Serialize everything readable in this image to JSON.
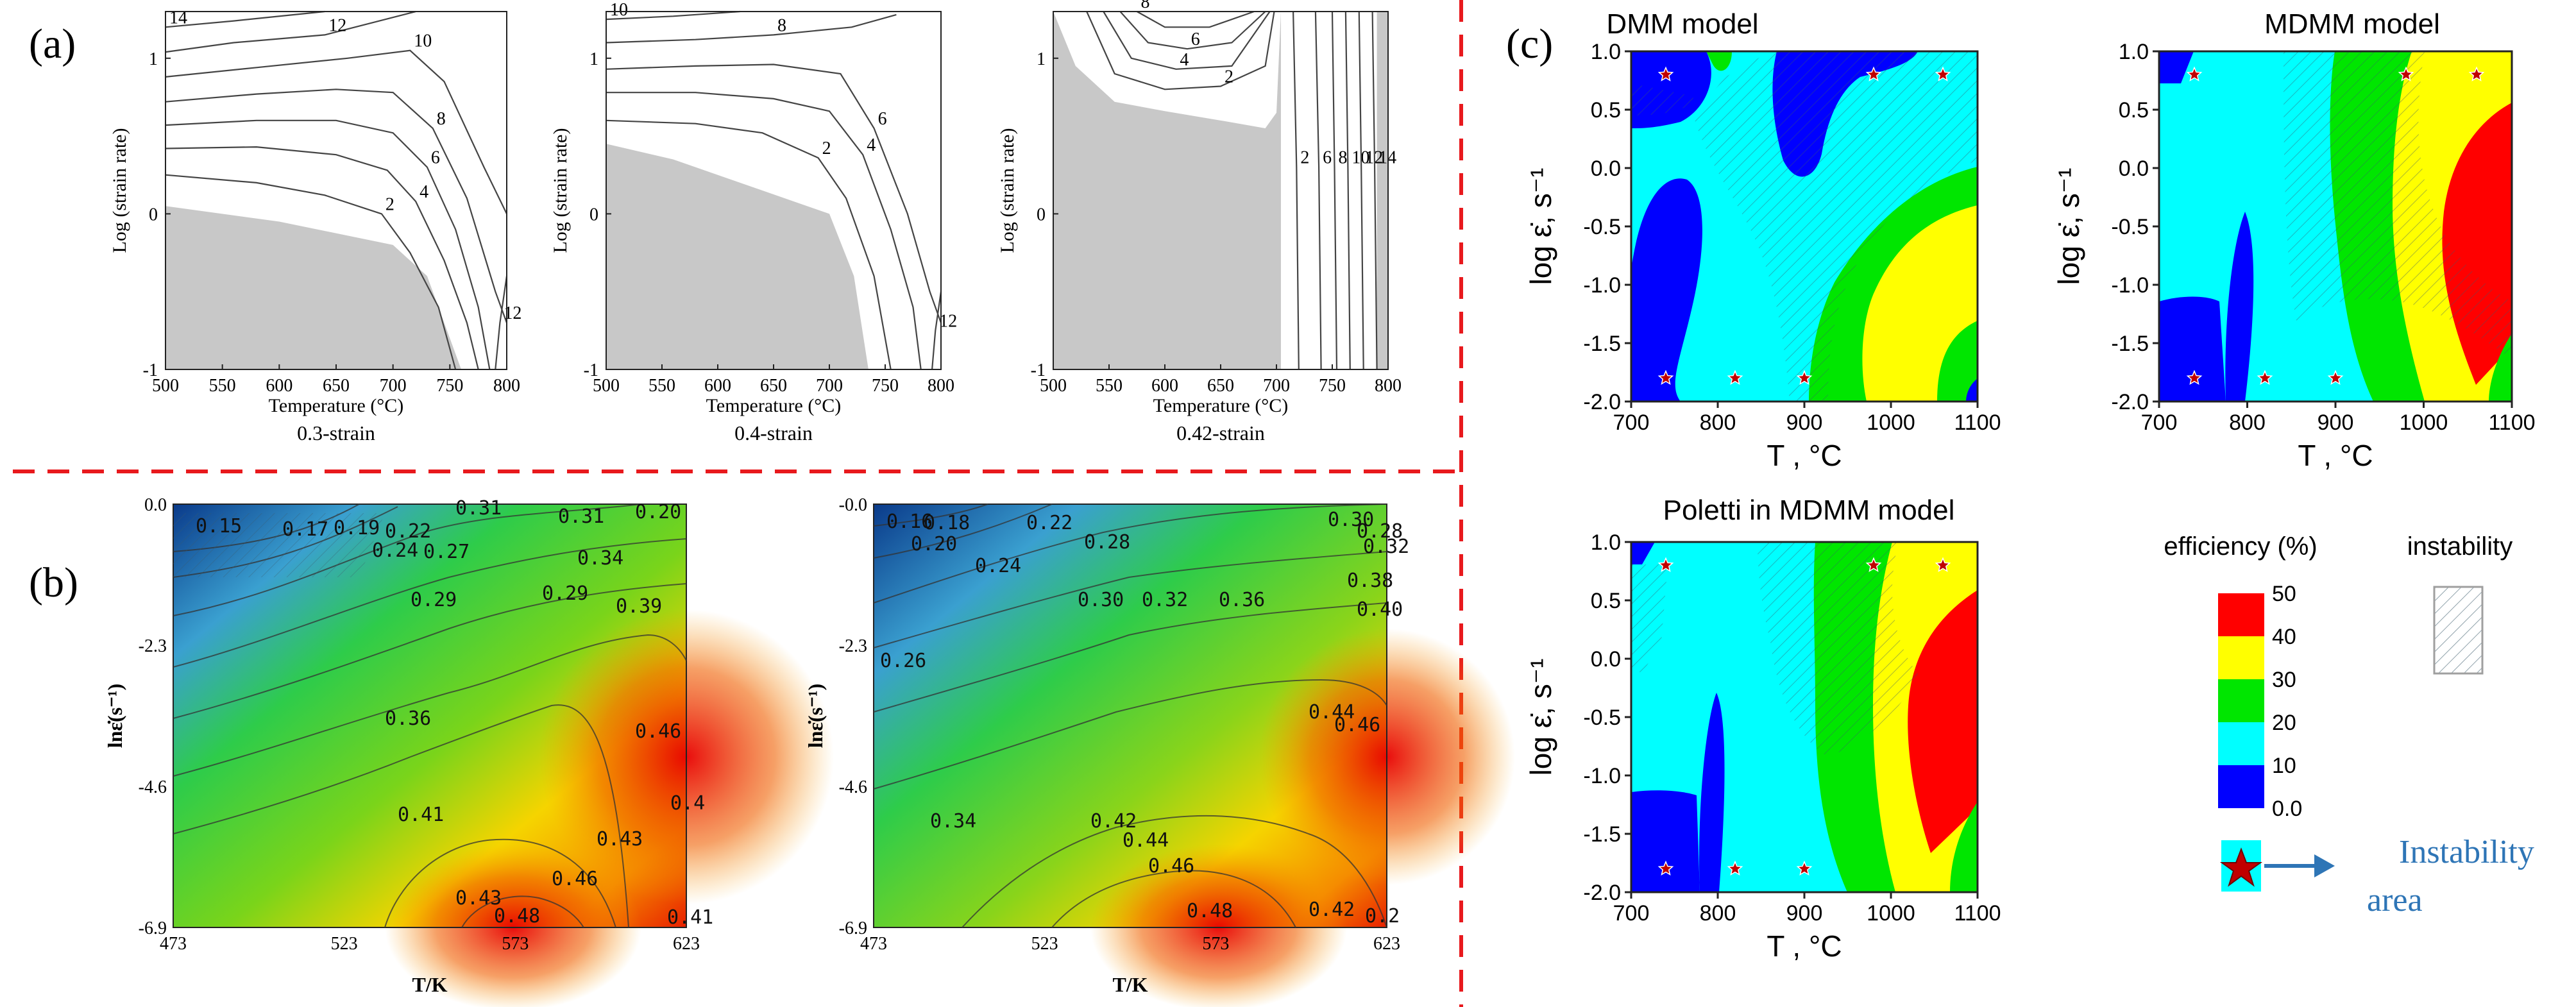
{
  "figure": {
    "panel_labels": [
      "(a)",
      "(b)",
      "(c)"
    ],
    "divider_color": "#e8191d"
  },
  "chart_data": [
    {
      "id": "a1",
      "type": "contour",
      "panel": "(a)",
      "title": "0.3-strain",
      "xlabel": "Temperature (°C)",
      "ylabel": "Log (strain rate)",
      "xlim": [
        500,
        800
      ],
      "ylim": [
        -1,
        1.3
      ],
      "xticks": [
        500,
        550,
        600,
        650,
        700,
        750,
        800
      ],
      "yticks": [
        -1,
        0,
        1
      ],
      "fill_color": "#c8c8c8",
      "instability_region": [
        [
          500,
          0.05
        ],
        [
          600,
          -0.05
        ],
        [
          700,
          -0.2
        ],
        [
          730,
          -0.4
        ],
        [
          760,
          -1
        ]
      ],
      "contours": [
        {
          "label": "14",
          "points": [
            [
              500,
              1.2
            ],
            [
              560,
              1.24
            ],
            [
              640,
              1.3
            ]
          ]
        },
        {
          "label": "12",
          "points": [
            [
              500,
              1.04
            ],
            [
              560,
              1.1
            ],
            [
              640,
              1.15
            ],
            [
              720,
              1.3
            ]
          ]
        },
        {
          "label": "10",
          "points": [
            [
              500,
              0.88
            ],
            [
              580,
              0.94
            ],
            [
              660,
              1.0
            ],
            [
              715,
              1.05
            ],
            [
              745,
              0.85
            ],
            [
              780,
              0.3
            ],
            [
              800,
              0.0
            ]
          ]
        },
        {
          "label": "8",
          "points": [
            [
              500,
              0.72
            ],
            [
              580,
              0.77
            ],
            [
              650,
              0.8
            ],
            [
              700,
              0.78
            ],
            [
              735,
              0.55
            ],
            [
              765,
              0.1
            ],
            [
              790,
              -0.5
            ],
            [
              800,
              -0.7
            ]
          ]
        },
        {
          "label": "6",
          "points": [
            [
              500,
              0.57
            ],
            [
              580,
              0.6
            ],
            [
              650,
              0.6
            ],
            [
              700,
              0.52
            ],
            [
              730,
              0.3
            ],
            [
              755,
              -0.1
            ],
            [
              775,
              -0.6
            ],
            [
              785,
              -1
            ]
          ]
        },
        {
          "label": "4",
          "points": [
            [
              500,
              0.42
            ],
            [
              580,
              0.43
            ],
            [
              650,
              0.38
            ],
            [
              695,
              0.28
            ],
            [
              720,
              0.08
            ],
            [
              745,
              -0.3
            ],
            [
              765,
              -0.7
            ],
            [
              775,
              -1
            ]
          ]
        },
        {
          "label": "2",
          "points": [
            [
              500,
              0.25
            ],
            [
              580,
              0.2
            ],
            [
              640,
              0.12
            ],
            [
              690,
              0.0
            ],
            [
              715,
              -0.25
            ],
            [
              740,
              -0.6
            ],
            [
              755,
              -1
            ]
          ]
        },
        {
          "label": "12",
          "points": [
            [
              800,
              -0.4
            ],
            [
              794,
              -0.7
            ],
            [
              790,
              -1
            ]
          ]
        }
      ]
    },
    {
      "id": "a2",
      "type": "contour",
      "panel": "(a)",
      "title": "0.4-strain",
      "xlabel": "Temperature (°C)",
      "ylabel": "Log (strain rate)",
      "xlim": [
        500,
        800
      ],
      "ylim": [
        -1,
        1.3
      ],
      "xticks": [
        500,
        550,
        600,
        650,
        700,
        750,
        800
      ],
      "yticks": [
        -1,
        0,
        1
      ],
      "fill_color": "#c8c8c8",
      "instability_region": [
        [
          500,
          0.45
        ],
        [
          560,
          0.35
        ],
        [
          640,
          0.15
        ],
        [
          700,
          0.0
        ],
        [
          722,
          -0.4
        ],
        [
          735,
          -1
        ]
      ],
      "contours": [
        {
          "label": "10",
          "points": [
            [
              500,
              1.25
            ],
            [
              560,
              1.27
            ],
            [
              620,
              1.3
            ]
          ]
        },
        {
          "label": "8",
          "points": [
            [
              500,
              1.1
            ],
            [
              580,
              1.12
            ],
            [
              650,
              1.15
            ],
            [
              720,
              1.2
            ],
            [
              760,
              1.28
            ]
          ]
        },
        {
          "label": "6",
          "points": [
            [
              500,
              0.93
            ],
            [
              580,
              0.95
            ],
            [
              650,
              0.96
            ],
            [
              710,
              0.9
            ],
            [
              740,
              0.55
            ],
            [
              770,
              0.0
            ],
            [
              790,
              -0.5
            ],
            [
              800,
              -0.7
            ]
          ]
        },
        {
          "label": "4",
          "points": [
            [
              500,
              0.78
            ],
            [
              580,
              0.78
            ],
            [
              650,
              0.74
            ],
            [
              700,
              0.66
            ],
            [
              730,
              0.38
            ],
            [
              755,
              -0.1
            ],
            [
              775,
              -0.6
            ],
            [
              782,
              -1
            ]
          ]
        },
        {
          "label": "2",
          "points": [
            [
              500,
              0.6
            ],
            [
              580,
              0.58
            ],
            [
              640,
              0.52
            ],
            [
              690,
              0.36
            ],
            [
              715,
              0.1
            ],
            [
              740,
              -0.4
            ],
            [
              755,
              -1
            ]
          ]
        },
        {
          "label": "12",
          "points": [
            [
              800,
              -0.5
            ],
            [
              795,
              -0.75
            ],
            [
              792,
              -1
            ]
          ]
        }
      ]
    },
    {
      "id": "a3",
      "type": "contour",
      "panel": "(a)",
      "title": "0.42-strain",
      "xlabel": "Temperature (°C)",
      "ylabel": "Log (strain rate)",
      "xlim": [
        500,
        800
      ],
      "ylim": [
        -1,
        1.3
      ],
      "xticks": [
        500,
        550,
        600,
        650,
        700,
        750,
        800
      ],
      "yticks": [
        -1,
        0,
        1
      ],
      "fill_color": "#c8c8c8",
      "instability_region": [
        [
          500,
          1.3
        ],
        [
          520,
          0.95
        ],
        [
          555,
          0.72
        ],
        [
          600,
          0.66
        ],
        [
          650,
          0.6
        ],
        [
          690,
          0.55
        ],
        [
          700,
          0.65
        ],
        [
          704,
          1.3
        ],
        [
          704,
          -1
        ],
        [
          500,
          -1
        ]
      ],
      "contours": [
        {
          "label": "8",
          "points": [
            [
              575,
              1.3
            ],
            [
              600,
              1.2
            ],
            [
              640,
              1.2
            ],
            [
              680,
              1.3
            ]
          ]
        },
        {
          "label": "6",
          "points": [
            [
              560,
              1.3
            ],
            [
              585,
              1.1
            ],
            [
              620,
              1.06
            ],
            [
              660,
              1.1
            ],
            [
              690,
              1.3
            ]
          ]
        },
        {
          "label": "4",
          "points": [
            [
              545,
              1.3
            ],
            [
              570,
              1.0
            ],
            [
              610,
              0.93
            ],
            [
              660,
              0.95
            ],
            [
              694,
              1.3
            ]
          ]
        },
        {
          "label": "2",
          "points": [
            [
              530,
              1.3
            ],
            [
              555,
              0.9
            ],
            [
              600,
              0.8
            ],
            [
              650,
              0.82
            ],
            [
              690,
              0.95
            ],
            [
              698,
              1.3
            ]
          ]
        },
        {
          "label": "2",
          "points": [
            [
              715,
              1.3
            ],
            [
              718,
              0.3
            ],
            [
              720,
              -1
            ]
          ]
        },
        {
          "label": "6",
          "points": [
            [
              735,
              1.3
            ],
            [
              738,
              0.3
            ],
            [
              740,
              -1
            ]
          ]
        },
        {
          "label": "8",
          "points": [
            [
              750,
              1.3
            ],
            [
              752,
              0.3
            ],
            [
              754,
              -1
            ]
          ]
        },
        {
          "label": "10",
          "points": [
            [
              762,
              1.3
            ],
            [
              764,
              0.3
            ],
            [
              766,
              -1
            ]
          ]
        },
        {
          "label": "12",
          "points": [
            [
              774,
              1.3
            ],
            [
              776,
              0.3
            ],
            [
              778,
              -1
            ]
          ]
        },
        {
          "label": "14",
          "points": [
            [
              786,
              1.3
            ],
            [
              788,
              0.3
            ],
            [
              790,
              -1
            ]
          ]
        }
      ]
    },
    {
      "id": "b1",
      "type": "contour",
      "panel": "(b)",
      "xlabel": "T/K",
      "ylabel": "lnε̇(s⁻¹)",
      "xlim": [
        473,
        623
      ],
      "ylim": [
        -6.9,
        0.0
      ],
      "xticks": [
        "473",
        "523",
        "573",
        "623"
      ],
      "yticks": [
        "0.0",
        "-2.3",
        "-4.6",
        "-6.9"
      ],
      "contour_labels": [
        "0.15",
        "0.17",
        "0.19",
        "0.22",
        "0.31",
        "0.31",
        "0.20",
        "0.24",
        "0.27",
        "0.34",
        "0.29",
        "0.29",
        "0.39",
        "0.36",
        "0.46",
        "0.41",
        "0.43",
        "0.46",
        "0.43",
        "0.48",
        "0.41",
        "0.4"
      ]
    },
    {
      "id": "b2",
      "type": "contour",
      "panel": "(b)",
      "xlabel": "T/K",
      "ylabel": "lnε̇(s⁻¹)",
      "xlim": [
        473,
        623
      ],
      "ylim": [
        -6.9,
        0.0
      ],
      "xticks": [
        "473",
        "523",
        "573",
        "623"
      ],
      "yticks": [
        "-0.0",
        "-2.3",
        "-4.6",
        "-6.9"
      ],
      "contour_labels": [
        "0.16",
        "0.18",
        "0.22",
        "0.20",
        "0.24",
        "0.28",
        "0.26",
        "0.30",
        "0.32",
        "0.36",
        "0.30",
        "0.28",
        "0.32",
        "0.38",
        "0.40",
        "0.34",
        "0.42",
        "0.44",
        "0.46",
        "0.44",
        "0.46",
        "0.48",
        "0.42",
        "0.2"
      ]
    },
    {
      "id": "c1",
      "type": "heatmap",
      "panel": "(c)",
      "title": "DMM model",
      "xlabel": "T ,  °C",
      "ylabel": "log ε̇,  s⁻¹",
      "xlim": [
        700,
        1100
      ],
      "ylim": [
        -2.0,
        1.0
      ],
      "xticks": [
        "700",
        "800",
        "900",
        "1000",
        "1100"
      ],
      "yticks": [
        "1.0",
        "0.5",
        "0.0",
        "-0.5",
        "-1.0",
        "-1.5",
        "-2.0"
      ],
      "instability_stars": [
        [
          740,
          0.8
        ],
        [
          980,
          0.8
        ],
        [
          1060,
          0.8
        ],
        [
          740,
          -1.8
        ],
        [
          820,
          -1.8
        ],
        [
          900,
          -1.8
        ]
      ]
    },
    {
      "id": "c2",
      "type": "heatmap",
      "panel": "(c)",
      "title": "MDMM model",
      "xlabel": "T ,  °C",
      "ylabel": "log ε̇,  s⁻¹",
      "xlim": [
        700,
        1100
      ],
      "ylim": [
        -2.0,
        1.0
      ],
      "xticks": [
        "700",
        "800",
        "900",
        "1000",
        "1100"
      ],
      "yticks": [
        "1.0",
        "0.5",
        "0.0",
        "-0.5",
        "-1.0",
        "-1.5",
        "-2.0"
      ],
      "instability_stars": [
        [
          740,
          0.8
        ],
        [
          980,
          0.8
        ],
        [
          1060,
          0.8
        ],
        [
          740,
          -1.8
        ],
        [
          820,
          -1.8
        ],
        [
          900,
          -1.8
        ]
      ]
    },
    {
      "id": "c3",
      "type": "heatmap",
      "panel": "(c)",
      "title": "Poletti in MDMM model",
      "xlabel": "T ,  °C",
      "ylabel": "log ε̇,  s⁻¹",
      "xlim": [
        700,
        1100
      ],
      "ylim": [
        -2.0,
        1.0
      ],
      "xticks": [
        "700",
        "800",
        "900",
        "1000",
        "1100"
      ],
      "yticks": [
        "1.0",
        "0.5",
        "0.0",
        "-0.5",
        "-1.0",
        "-1.5",
        "-2.0"
      ],
      "instability_stars": [
        [
          740,
          0.8
        ],
        [
          980,
          0.8
        ],
        [
          1060,
          0.8
        ],
        [
          740,
          -1.8
        ],
        [
          820,
          -1.8
        ],
        [
          900,
          -1.8
        ]
      ]
    }
  ],
  "legend": {
    "efficiency_title": "efficiency (%)",
    "instability_title": "instability",
    "levels": [
      {
        "label": "50",
        "color": "#ff0000"
      },
      {
        "label": "40",
        "color": "#ffff00"
      },
      {
        "label": "30",
        "color": "#00e600"
      },
      {
        "label": "20",
        "color": "#00ffff"
      },
      {
        "label": "10",
        "color": "#0000ff"
      },
      {
        "label": "0.0",
        "color": ""
      }
    ],
    "instability_area_line1": "Instability",
    "instability_area_line2": "area",
    "text_color": "#2e75b6"
  },
  "colors": {
    "red": "#ff0000",
    "yellow": "#ffff00",
    "green": "#00e600",
    "cyan": "#00ffff",
    "blue": "#0000ff",
    "gray": "#c8c8c8",
    "star": "#c00000"
  }
}
